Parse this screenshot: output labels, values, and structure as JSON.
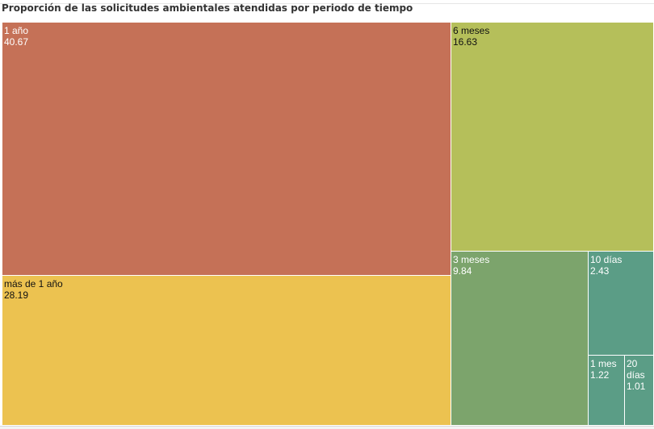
{
  "title": "Proporción de las solicitudes ambientales atendidas por periodo de tiempo",
  "chart_data": {
    "type": "treemap",
    "title": "Proporción de las solicitudes ambientales atendidas por periodo de tiempo",
    "items": [
      {
        "label": "1 año",
        "value": 40.67,
        "color": "#c57157",
        "text_color": "#ffffff"
      },
      {
        "label": "más de 1 año",
        "value": 28.19,
        "color": "#ecc250",
        "text_color": "#111111"
      },
      {
        "label": "6 meses",
        "value": 16.63,
        "color": "#b5bf5a",
        "text_color": "#111111"
      },
      {
        "label": "3 meses",
        "value": 9.84,
        "color": "#7ca46c",
        "text_color": "#ffffff"
      },
      {
        "label": "10 días",
        "value": 2.43,
        "color": "#5b9d86",
        "text_color": "#ffffff"
      },
      {
        "label": "1 mes",
        "value": 1.22,
        "color": "#5b9d86",
        "text_color": "#ffffff"
      },
      {
        "label": "20 días",
        "value": 1.01,
        "color": "#5b9d86",
        "text_color": "#ffffff"
      }
    ]
  }
}
